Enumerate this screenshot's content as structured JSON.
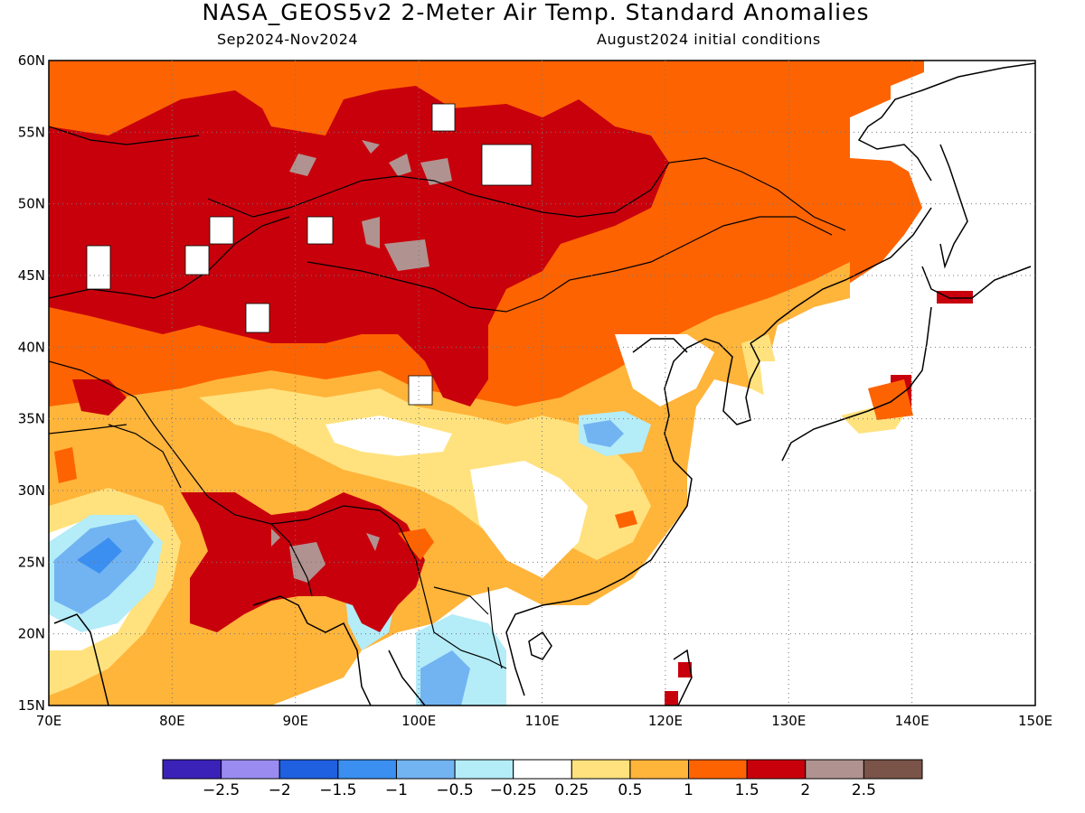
{
  "title": "NASA_GEOS5v2 2-Meter Air Temp. Standard Anomalies",
  "subtitle_left": "Sep2024-Nov2024",
  "subtitle_right": "August2024 initial conditions",
  "map": {
    "lon_range": [
      70,
      150
    ],
    "lat_range": [
      15,
      60
    ],
    "lon_ticks": [
      "70E",
      "80E",
      "90E",
      "100E",
      "110E",
      "120E",
      "130E",
      "140E",
      "150E"
    ],
    "lat_ticks": [
      "15N",
      "20N",
      "25N",
      "30N",
      "35N",
      "40N",
      "45N",
      "50N",
      "55N",
      "60N"
    ]
  },
  "colorbar": {
    "colors": [
      "#3a22b8",
      "#9a8bf0",
      "#1f60e0",
      "#3a8ff0",
      "#72b4f2",
      "#b4ecf8",
      "#ffffff",
      "#ffe27e",
      "#ffb43a",
      "#fe6302",
      "#c8000c",
      "#b09390",
      "#7a5448"
    ],
    "labels": [
      "−2.5",
      "−2",
      "−1.5",
      "−1",
      "−0.5",
      "−0.25",
      "0.25",
      "0.5",
      "1",
      "1.5",
      "2",
      "2.5"
    ]
  }
}
